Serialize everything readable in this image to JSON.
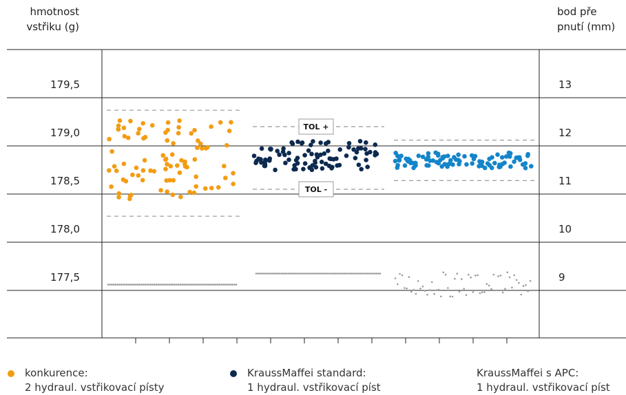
{
  "left_axis_title": [
    "hmotnost",
    "vstřiku (g)"
  ],
  "right_axis_title": [
    "bod pře",
    "pnutí (mm)"
  ],
  "chart_data": {
    "type": "scatter",
    "left_ticks": [
      "179,5",
      "179,0",
      "178,5",
      "178,0",
      "177,5"
    ],
    "left_tick_values": [
      179.5,
      179.0,
      178.5,
      178.0,
      177.5
    ],
    "right_ticks": [
      "13",
      "12",
      "11",
      "10",
      "9"
    ],
    "right_tick_values": [
      13,
      12,
      11,
      10,
      9
    ],
    "left_ylim": [
      177.0,
      180.0
    ],
    "right_ylim": [
      8.5,
      13.5
    ],
    "grid": true,
    "tolerance_labels": [
      "TOL +",
      "TOL -"
    ],
    "tolerance": {
      "upper": 179.2,
      "lower": 178.55
    },
    "series": [
      {
        "name": "konkurence:",
        "color": "#f39c12",
        "weight_band": [
          178.45,
          179.27
        ],
        "weight_limits": [
          178.27,
          179.37
        ],
        "stroke_level_mm": 9.12,
        "stroke_variation": "constant"
      },
      {
        "name": "KraussMaffei standard:",
        "color": "#0d2a4f",
        "weight_band": [
          178.75,
          179.05
        ],
        "weight_limits": [
          178.55,
          179.2
        ],
        "stroke_level_mm": 9.35,
        "stroke_variation": "constant"
      },
      {
        "name": "KraussMaffei s APC:",
        "color": "#1485c9",
        "weight_band": [
          178.77,
          178.93
        ],
        "weight_limits": [
          178.64,
          179.06
        ],
        "stroke_level_mm": 9.12,
        "stroke_variation": "scattered"
      }
    ]
  },
  "legend": [
    {
      "line1": "konkurence:",
      "line2": "2 hydraul. vstřikovací písty",
      "color": "#f39c12"
    },
    {
      "line1": "KraussMaffei standard:",
      "line2": "1 hydraul. vstřikovací píst",
      "color": "#0d2a4f"
    },
    {
      "line1": "KraussMaffei s APC:",
      "line2": "1 hydraul. vstřikovací píst",
      "color": "#1485c9"
    }
  ]
}
